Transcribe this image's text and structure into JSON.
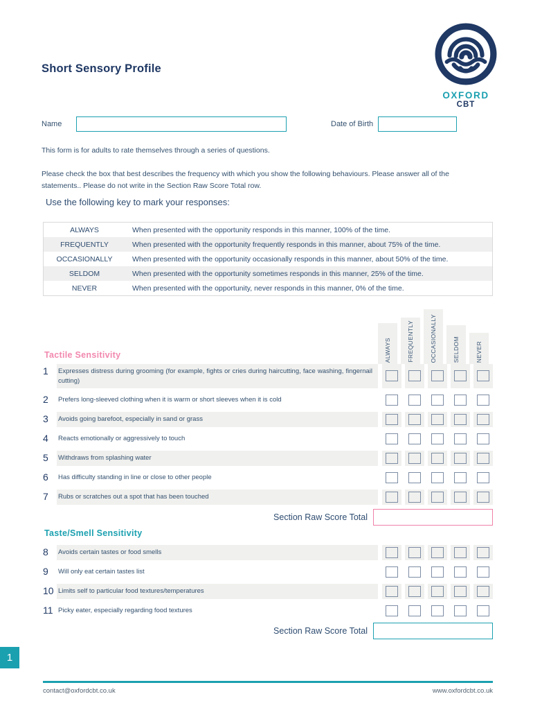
{
  "page": {
    "title": "Short Sensory Profile",
    "page_number": "1"
  },
  "logo": {
    "brand_top": "OXFORD",
    "brand_bottom": "CBT",
    "navy": "#1f3864",
    "teal": "#1ba0b0"
  },
  "fields": {
    "name_label": "Name",
    "name_value": "",
    "dob_label": "Date of Birth",
    "dob_value": ""
  },
  "intro": {
    "line1": "This form is for adults to rate themselves through a series of questions.",
    "line2": "Please check the box that best describes the frequency with which you show the following behaviours. Please answer all of the statements.. Please do not write in the Section Raw Score Total row.",
    "key_instruction": "Use the following key to mark your responses:"
  },
  "key_table": {
    "rows": [
      {
        "term": "ALWAYS",
        "description": "When presented with the opportunity responds in this manner, 100% of the time."
      },
      {
        "term": "FREQUENTLY",
        "description": "When presented with the opportunity frequently responds in this manner, about 75% of the time."
      },
      {
        "term": "OCCASIONALLY",
        "description": "When presented with the opportunity occasionally responds in this manner, about 50% of the time."
      },
      {
        "term": "SELDOM",
        "description": "When presented with the opportunity sometimes responds in this manner, 25% of the time."
      },
      {
        "term": "NEVER",
        "description": "When presented with the opportunity, never responds in this manner, 0% of the time."
      }
    ]
  },
  "response_columns": [
    "ALWAYS",
    "FREQUENTLY",
    "OCCASIONALLY",
    "SELDOM",
    "NEVER"
  ],
  "sections": [
    {
      "heading": "Tactile Sensitivity",
      "heading_color": "#f288ae",
      "total_label": "Section Raw Score Total",
      "total_value": "",
      "total_border_color": "#f080a8",
      "questions": [
        {
          "number": "1",
          "text": "Expresses distress during grooming (for example, fights or cries during haircutting, face washing, fingernail cutting)"
        },
        {
          "number": "2",
          "text": "Prefers long-sleeved clothing when it is warm or short sleeves when it is cold"
        },
        {
          "number": "3",
          "text": "Avoids going barefoot, especially in sand or grass"
        },
        {
          "number": "4",
          "text": "Reacts emotionally or aggressively to touch"
        },
        {
          "number": "5",
          "text": "Withdraws from splashing water"
        },
        {
          "number": "6",
          "text": "Has difficulty standing in line or close to other people"
        },
        {
          "number": "7",
          "text": "Rubs or scratches out a spot that has been touched"
        }
      ]
    },
    {
      "heading": "Taste/Smell Sensitivity",
      "heading_color": "#1ba0b0",
      "total_label": "Section Raw Score Total",
      "total_value": "",
      "total_border_color": "#1ba0b0",
      "questions": [
        {
          "number": "8",
          "text": "Avoids certain tastes or food smells"
        },
        {
          "number": "9",
          "text": "Will only eat certain tastes list"
        },
        {
          "number": "10",
          "text": "Limits self to particular food textures/temperatures"
        },
        {
          "number": "11",
          "text": "Picky eater, especially regarding food textures"
        }
      ]
    }
  ],
  "footer": {
    "email": "contact@oxfordcbt.co.uk",
    "website": "www.oxfordcbt.co.uk"
  }
}
